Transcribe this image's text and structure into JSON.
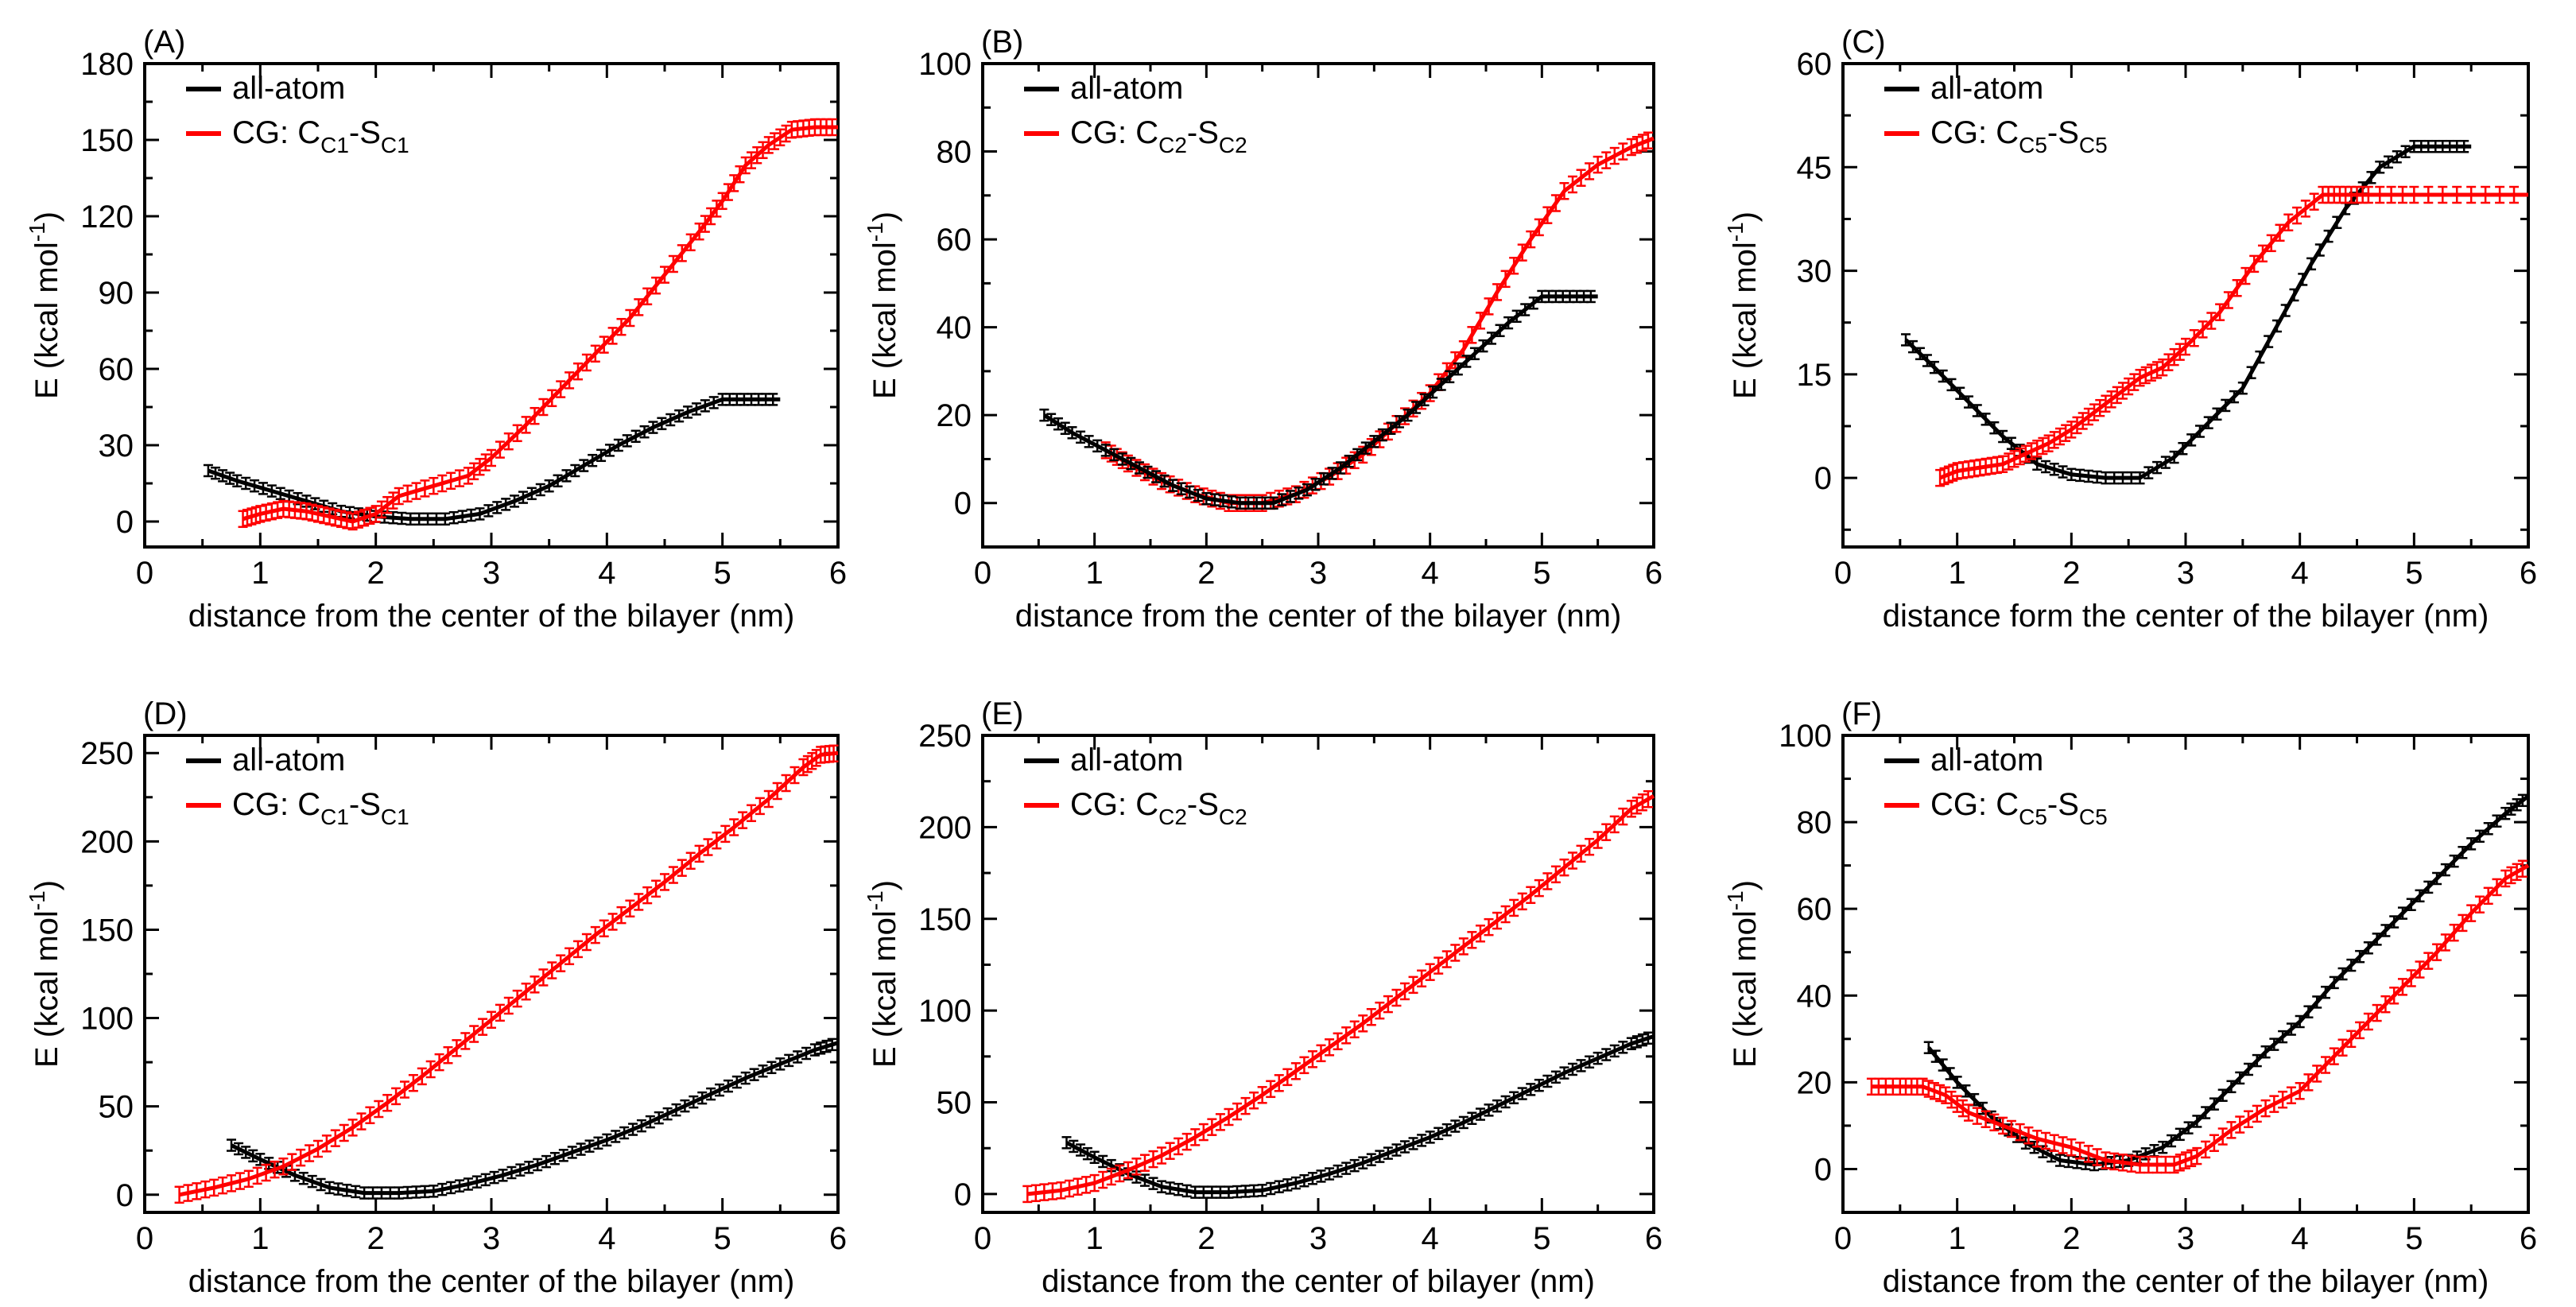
{
  "figure": {
    "series_styles": {
      "all_atom_color": "#000000",
      "cg_color": "#ff0000"
    },
    "x_tick_labels": [
      "0",
      "1",
      "2",
      "3",
      "4",
      "5",
      "6"
    ]
  },
  "chart_data": [
    {
      "type": "line",
      "panel_label": "(A)",
      "xlabel": "distance from the center of the bilayer (nm)",
      "ylabel": {
        "main": "E (kcal mol",
        "sup": "-1",
        "tail": ")"
      },
      "xlim": [
        0,
        6
      ],
      "ylim": [
        -10,
        180
      ],
      "yticks": [
        0,
        30,
        60,
        90,
        120,
        150,
        180
      ],
      "legend": [
        {
          "key": "all-atom",
          "text": "all-atom",
          "color": "#000000"
        },
        {
          "key": "cg",
          "text": "CG: ",
          "formula": [
            [
              "C",
              ""
            ],
            [
              "C1",
              "sub"
            ],
            [
              "-S",
              ""
            ],
            [
              "C1",
              "sub"
            ]
          ],
          "color": "#ff0000"
        }
      ],
      "series": [
        {
          "name": "all-atom",
          "color": "#000000",
          "x": [
            0.55,
            0.8,
            1.1,
            1.4,
            1.7,
            2.0,
            2.3,
            2.6,
            2.9,
            3.2,
            3.5,
            3.8,
            4.1,
            4.4,
            4.7,
            5.0,
            5.25,
            5.5
          ],
          "y": [
            20,
            16,
            12,
            8,
            4,
            2,
            1,
            1,
            3,
            8,
            14,
            22,
            30,
            37,
            43,
            48,
            48,
            48
          ]
        },
        {
          "name": "CG: CC1-SC1",
          "color": "#ff0000",
          "x": [
            0.85,
            1.0,
            1.2,
            1.4,
            1.6,
            1.8,
            2.0,
            2.2,
            2.5,
            2.8,
            3.0,
            3.3,
            3.6,
            3.9,
            4.2,
            4.5,
            4.8,
            5.0,
            5.2,
            5.4,
            5.6,
            5.8,
            6.0
          ],
          "y": [
            1,
            3,
            5,
            4,
            2,
            0,
            3,
            10,
            14,
            18,
            25,
            38,
            52,
            66,
            80,
            97,
            114,
            126,
            140,
            148,
            154,
            155,
            155
          ]
        }
      ]
    },
    {
      "type": "line",
      "panel_label": "(B)",
      "xlabel": "distance from the center of the bilayer (nm)",
      "ylabel": {
        "main": "E (kcal mol",
        "sup": "-1",
        "tail": ")"
      },
      "xlim": [
        0,
        6
      ],
      "ylim": [
        -10,
        100
      ],
      "yticks": [
        0,
        20,
        40,
        60,
        80,
        100
      ],
      "legend": [
        {
          "key": "all-atom",
          "text": "all-atom",
          "color": "#000000"
        },
        {
          "key": "cg",
          "text": "CG: ",
          "formula": [
            [
              "C",
              ""
            ],
            [
              "C2",
              "sub"
            ],
            [
              "-S",
              ""
            ],
            [
              "C2",
              "sub"
            ]
          ],
          "color": "#ff0000"
        }
      ],
      "series": [
        {
          "name": "all-atom",
          "color": "#000000",
          "x": [
            0.55,
            0.8,
            1.1,
            1.4,
            1.7,
            2.0,
            2.3,
            2.6,
            2.9,
            3.2,
            3.5,
            3.8,
            4.1,
            4.4,
            4.7,
            5.0,
            5.25,
            5.5
          ],
          "y": [
            20,
            16,
            12,
            8,
            4,
            1,
            0,
            0,
            3,
            8,
            14,
            20,
            27,
            34,
            41,
            47,
            47,
            47
          ]
        },
        {
          "name": "CG: CC2-SC2",
          "color": "#ff0000",
          "x": [
            1.1,
            1.3,
            1.6,
            1.9,
            2.2,
            2.5,
            2.8,
            3.1,
            3.4,
            3.7,
            4.0,
            4.3,
            4.6,
            4.9,
            5.2,
            5.5,
            5.8,
            6.0
          ],
          "y": [
            12,
            9,
            5,
            2,
            0,
            0,
            2,
            6,
            11,
            18,
            25,
            35,
            48,
            60,
            71,
            77,
            81,
            83
          ]
        }
      ]
    },
    {
      "type": "line",
      "panel_label": "(C)",
      "xlabel": "distance form the center of the bilayer (nm)",
      "ylabel": {
        "main": "E (kcal mol",
        "sup": "-1",
        "tail": ")"
      },
      "xlim": [
        0,
        6
      ],
      "ylim": [
        -10,
        60
      ],
      "yticks": [
        0,
        15,
        30,
        45,
        60
      ],
      "legend": [
        {
          "key": "all-atom",
          "text": "all-atom",
          "color": "#000000"
        },
        {
          "key": "cg",
          "text": "CG: ",
          "formula": [
            [
              "C",
              ""
            ],
            [
              "C5",
              "sub"
            ],
            [
              "-S",
              ""
            ],
            [
              "C5",
              "sub"
            ]
          ],
          "color": "#ff0000"
        }
      ],
      "series": [
        {
          "name": "all-atom",
          "color": "#000000",
          "x": [
            0.55,
            0.8,
            1.1,
            1.4,
            1.7,
            2.0,
            2.3,
            2.6,
            2.9,
            3.2,
            3.5,
            3.8,
            4.1,
            4.4,
            4.7,
            5.0,
            5.25,
            5.5
          ],
          "y": [
            20,
            16,
            11,
            6,
            2,
            0.5,
            0,
            0,
            3,
            8,
            13,
            22,
            31,
            39,
            45,
            48,
            48,
            48
          ]
        },
        {
          "name": "CG: CC5-SC5",
          "color": "#ff0000",
          "x": [
            0.85,
            1.0,
            1.2,
            1.4,
            1.6,
            1.8,
            2.0,
            2.2,
            2.4,
            2.6,
            2.8,
            3.0,
            3.3,
            3.6,
            3.9,
            4.2,
            4.4,
            4.6,
            5.0,
            5.5,
            6.0
          ],
          "y": [
            0,
            1,
            1.5,
            2,
            3.5,
            5,
            7,
            9.5,
            12,
            14.5,
            16,
            19,
            24,
            31,
            37,
            41,
            41,
            41,
            41,
            41,
            41
          ]
        }
      ]
    },
    {
      "type": "line",
      "panel_label": "(D)",
      "xlabel": "distance from the center of the bilayer (nm)",
      "ylabel": {
        "main": "E (kcal mol",
        "sup": "-1",
        "tail": ")"
      },
      "xlim": [
        0,
        6
      ],
      "ylim": [
        -10,
        260
      ],
      "yticks": [
        0,
        50,
        100,
        150,
        200,
        250
      ],
      "legend": [
        {
          "key": "all-atom",
          "text": "all-atom",
          "color": "#000000"
        },
        {
          "key": "cg",
          "text": "CG: ",
          "formula": [
            [
              "C",
              ""
            ],
            [
              "C1",
              "sub"
            ],
            [
              "-S",
              ""
            ],
            [
              "C1",
              "sub"
            ]
          ],
          "color": "#ff0000"
        }
      ],
      "series": [
        {
          "name": "all-atom",
          "color": "#000000",
          "x": [
            0.75,
            1.0,
            1.3,
            1.6,
            1.9,
            2.2,
            2.5,
            2.8,
            3.1,
            3.4,
            3.7,
            4.0,
            4.3,
            4.6,
            4.9,
            5.2,
            5.5,
            5.8,
            6.0
          ],
          "y": [
            28,
            20,
            11,
            4,
            1,
            1,
            2,
            6,
            11,
            17,
            24,
            31,
            39,
            48,
            57,
            66,
            74,
            82,
            86
          ]
        },
        {
          "name": "CG: CC1-SC1",
          "color": "#ff0000",
          "x": [
            0.3,
            0.6,
            0.9,
            1.2,
            1.5,
            1.8,
            2.1,
            2.4,
            2.7,
            3.0,
            3.3,
            3.6,
            3.9,
            4.2,
            4.5,
            4.8,
            5.1,
            5.4,
            5.7,
            5.85,
            6.0
          ],
          "y": [
            0,
            4,
            9,
            16,
            26,
            38,
            52,
            67,
            83,
            99,
            115,
            131,
            147,
            162,
            177,
            193,
            208,
            224,
            242,
            249,
            250
          ]
        }
      ]
    },
    {
      "type": "line",
      "panel_label": "(E)",
      "xlabel": "distance from the center of bilayer (nm)",
      "ylabel": {
        "main": "E (kcal mol",
        "sup": "-1",
        "tail": ")"
      },
      "xlim": [
        0,
        6
      ],
      "ylim": [
        -10,
        250
      ],
      "yticks": [
        0,
        50,
        100,
        150,
        200,
        250
      ],
      "legend": [
        {
          "key": "all-atom",
          "text": "all-atom",
          "color": "#000000"
        },
        {
          "key": "cg",
          "text": "CG: ",
          "formula": [
            [
              "C",
              ""
            ],
            [
              "C2",
              "sub"
            ],
            [
              "-S",
              ""
            ],
            [
              "C2",
              "sub"
            ]
          ],
          "color": "#ff0000"
        }
      ],
      "series": [
        {
          "name": "all-atom",
          "color": "#000000",
          "x": [
            0.75,
            1.0,
            1.3,
            1.6,
            1.9,
            2.2,
            2.5,
            2.8,
            3.1,
            3.4,
            3.7,
            4.0,
            4.3,
            4.6,
            4.9,
            5.2,
            5.5,
            5.8,
            6.0
          ],
          "y": [
            28,
            20,
            11,
            4,
            1,
            1,
            2,
            6,
            11,
            17,
            24,
            31,
            39,
            48,
            57,
            66,
            74,
            82,
            86
          ]
        },
        {
          "name": "CG: CC2-SC2",
          "color": "#ff0000",
          "x": [
            0.4,
            0.7,
            1.0,
            1.3,
            1.6,
            1.9,
            2.2,
            2.5,
            2.8,
            3.1,
            3.4,
            3.7,
            4.0,
            4.3,
            4.6,
            4.9,
            5.2,
            5.5,
            5.8,
            6.0
          ],
          "y": [
            0,
            2,
            6,
            13,
            21,
            31,
            42,
            54,
            67,
            80,
            93,
            107,
            121,
            135,
            149,
            163,
            178,
            193,
            210,
            217
          ]
        }
      ]
    },
    {
      "type": "line",
      "panel_label": "(F)",
      "xlabel": "distance from the center of the bilayer (nm)",
      "ylabel": {
        "main": "E (kcal mol",
        "sup": "-1",
        "tail": ")"
      },
      "xlim": [
        0,
        6
      ],
      "ylim": [
        -10,
        100
      ],
      "yticks": [
        0,
        20,
        40,
        60,
        80,
        100
      ],
      "legend": [
        {
          "key": "all-atom",
          "text": "all-atom",
          "color": "#000000"
        },
        {
          "key": "cg",
          "text": "CG: ",
          "formula": [
            [
              "C",
              ""
            ],
            [
              "C5",
              "sub"
            ],
            [
              "-S",
              ""
            ],
            [
              "C5",
              "sub"
            ]
          ],
          "color": "#ff0000"
        }
      ],
      "series": [
        {
          "name": "all-atom",
          "color": "#000000",
          "x": [
            0.75,
            1.0,
            1.3,
            1.6,
            1.9,
            2.2,
            2.5,
            2.8,
            3.1,
            3.4,
            3.7,
            4.0,
            4.3,
            4.6,
            4.9,
            5.2,
            5.5,
            5.8,
            6.0
          ],
          "y": [
            28,
            20,
            12,
            6,
            2,
            1,
            2,
            5,
            11,
            19,
            27,
            34,
            43,
            51,
            59,
            67,
            75,
            82,
            86
          ]
        },
        {
          "name": "CG: CC5-SC5",
          "color": "#ff0000",
          "x": [
            0.25,
            0.5,
            0.7,
            0.9,
            1.1,
            1.4,
            1.7,
            2.0,
            2.3,
            2.6,
            2.9,
            3.1,
            3.4,
            3.7,
            4.0,
            4.3,
            4.6,
            4.9,
            5.2,
            5.5,
            5.8,
            6.0
          ],
          "y": [
            19,
            19,
            19,
            17,
            13,
            10,
            7,
            5,
            2,
            1,
            1,
            3,
            9,
            14,
            18,
            26,
            34,
            42,
            50,
            59,
            67,
            70
          ]
        }
      ]
    }
  ]
}
